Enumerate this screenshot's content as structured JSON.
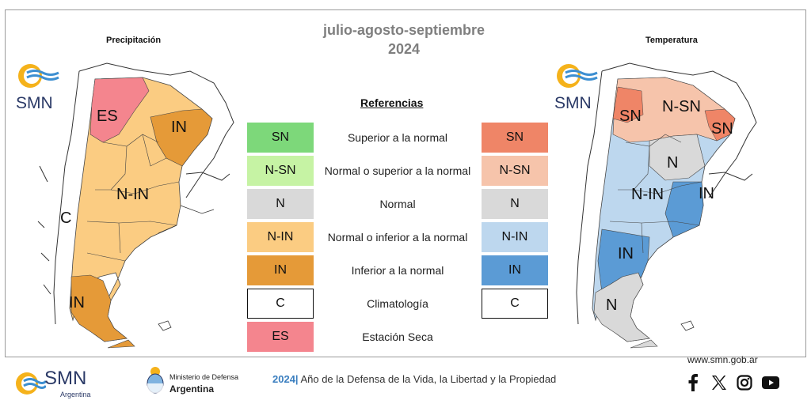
{
  "header": {
    "title_line1": "julio-agosto-septiembre",
    "title_line2": "2024",
    "left_map_title": "Precipitación",
    "right_map_title": "Temperatura"
  },
  "logo": {
    "text": "SMN"
  },
  "left_map": {
    "labels": {
      "es": "ES",
      "in_ne": "IN",
      "n_in": "N-IN",
      "c": "C",
      "in_s": "IN"
    }
  },
  "right_map": {
    "labels": {
      "sn_nw": "SN",
      "n_sn": "N-SN",
      "sn_ne": "SN",
      "n_c": "N",
      "n_in": "N-IN",
      "in_e": "IN",
      "in_s": "IN",
      "n_s": "N"
    }
  },
  "legend": {
    "heading": "Referencias",
    "rows": [
      {
        "code_left": "SN",
        "label": "Superior a la normal",
        "code_right": "SN",
        "color_left": "#7dd87a",
        "color_right": "#ef8567"
      },
      {
        "code_left": "N-SN",
        "label": "Normal o superior a la normal",
        "code_right": "N-SN",
        "color_left": "#c6f3a4",
        "color_right": "#f6c4ab"
      },
      {
        "code_left": "N",
        "label": "Normal",
        "code_right": "N",
        "color_left": "#d9d9d9",
        "color_right": "#d9d9d9"
      },
      {
        "code_left": "N-IN",
        "label": "Normal o inferior a la normal",
        "code_right": "N-IN",
        "color_left": "#fbcc82",
        "color_right": "#bdd7ee"
      },
      {
        "code_left": "IN",
        "label": "Inferior a la normal",
        "code_right": "IN",
        "color_left": "#e59a38",
        "color_right": "#5b9bd5"
      },
      {
        "code_left": "C",
        "label": "Climatología",
        "code_right": "C",
        "color_left": "#ffffff",
        "color_right": "#ffffff"
      },
      {
        "code_left": "ES",
        "label": "Estación Seca",
        "code_right": "",
        "color_left": "#f4858e",
        "color_right": ""
      }
    ]
  },
  "footer": {
    "smn": "SMN",
    "smn_sub": "Argentina",
    "ministry_line1": "Ministerio de Defensa",
    "ministry_line2": "Argentina",
    "motto_year": "2024",
    "motto_sep": "|",
    "motto_text": " Año de la Defensa de la Vida, la Libertad y la Propiedad",
    "website": "www.smn.gob.ar",
    "social_icons": [
      "facebook-icon",
      "x-icon",
      "instagram-icon",
      "youtube-icon"
    ]
  }
}
